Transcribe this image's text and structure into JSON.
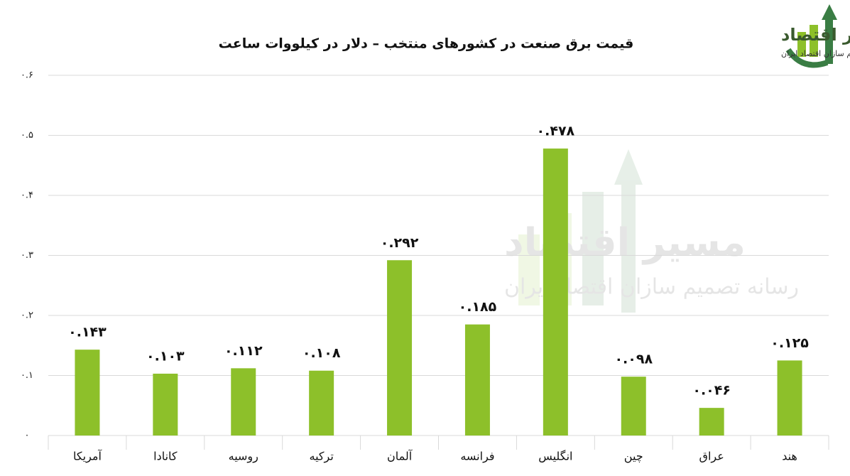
{
  "chart_data": {
    "type": "bar",
    "title": "قیمت برق صنعت در کشورهای منتخب – دلار در کیلووات ساعت",
    "logo": {
      "name": "مسیر اقتصاد",
      "tagline": "رسانه تصمیم سازان اقتصاد ایران"
    },
    "categories": [
      "آمریکا",
      "کانادا",
      "روسیه",
      "ترکیه",
      "آلمان",
      "فرانسه",
      "انگلیس",
      "چین",
      "عراق",
      "هند"
    ],
    "values": [
      0.143,
      0.103,
      0.112,
      0.108,
      0.292,
      0.185,
      0.478,
      0.098,
      0.046,
      0.125
    ],
    "value_labels": [
      "۰.۱۴۳",
      "۰.۱۰۳",
      "۰.۱۱۲",
      "۰.۱۰۸",
      "۰.۲۹۲",
      "۰.۱۸۵",
      "۰.۴۷۸",
      "۰.۰۹۸",
      "۰.۰۴۶",
      "۰.۱۲۵"
    ],
    "color": "#8dc02a",
    "ylim": [
      0,
      0.6
    ],
    "yticks": [
      {
        "value": 0,
        "label": "۰"
      },
      {
        "value": 0.1,
        "label": "۰.۱"
      },
      {
        "value": 0.2,
        "label": "۰.۲"
      },
      {
        "value": 0.3,
        "label": "۰.۳"
      },
      {
        "value": 0.4,
        "label": "۰.۴"
      },
      {
        "value": 0.5,
        "label": "۰.۵"
      },
      {
        "value": 0.6,
        "label": "۰.۶"
      }
    ],
    "grid": true
  }
}
